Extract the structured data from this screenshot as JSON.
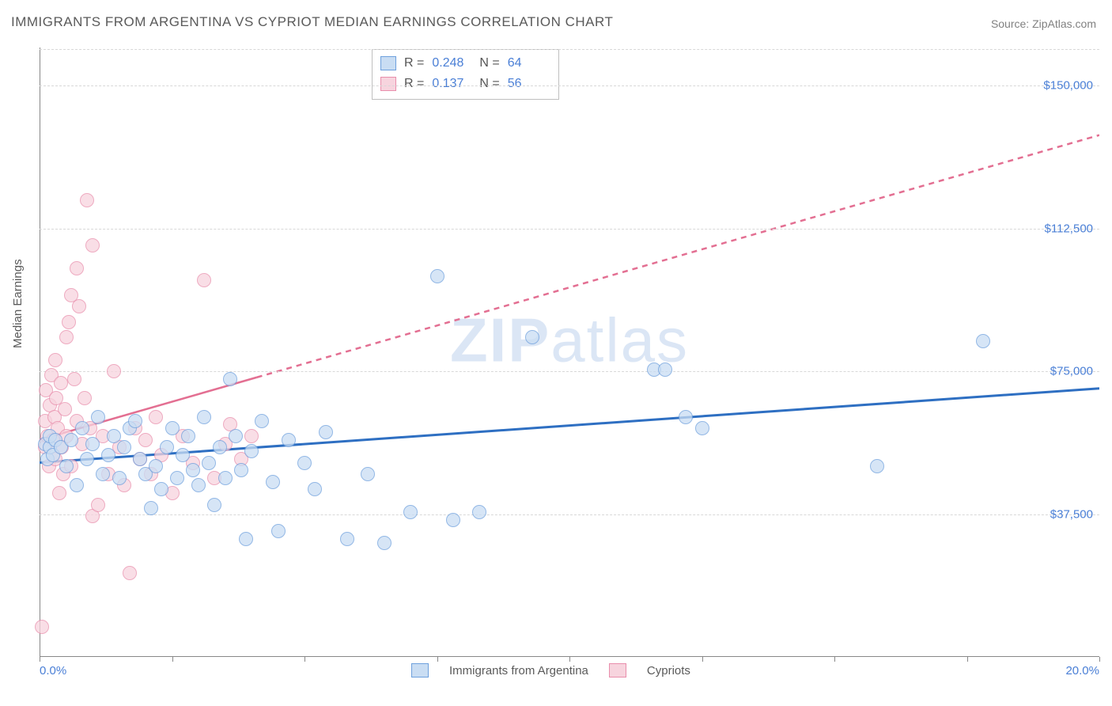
{
  "title": "IMMIGRANTS FROM ARGENTINA VS CYPRIOT MEDIAN EARNINGS CORRELATION CHART",
  "source": "Source: ZipAtlas.com",
  "ylabel": "Median Earnings",
  "watermark_a": "ZIP",
  "watermark_b": "atlas",
  "chart": {
    "type": "scatter",
    "xlim": [
      0,
      20
    ],
    "ylim": [
      0,
      160000
    ],
    "x_ticks": [
      0,
      2.5,
      5,
      7.5,
      10,
      12.5,
      15,
      17.5,
      20
    ],
    "x_tick_labels": {
      "0": "0.0%",
      "20": "20.0%"
    },
    "y_gridlines": [
      37500,
      75000,
      112500,
      150000
    ],
    "y_tick_labels": {
      "37500": "$37,500",
      "75000": "$75,000",
      "112500": "$112,500",
      "150000": "$150,000"
    },
    "background_color": "#ffffff",
    "grid_color": "#d8d8d8",
    "axis_color": "#888888",
    "tick_label_color": "#4a7fd6",
    "marker_radius": 9,
    "marker_border_width": 1.2,
    "series": [
      {
        "name": "Immigrants from Argentina",
        "fill": "#c9ddf3",
        "stroke": "#6ea0dd",
        "fill_opacity": 0.75,
        "R": "0.248",
        "N": "64",
        "trend": {
          "color": "#2e6fc2",
          "width": 3,
          "y_at_x0": 51000,
          "y_at_x20": 70500,
          "solid_until_x": 20
        },
        "points": [
          [
            0.1,
            56000
          ],
          [
            0.15,
            52000
          ],
          [
            0.2,
            55000
          ],
          [
            0.2,
            58000
          ],
          [
            0.25,
            53000
          ],
          [
            0.3,
            57000
          ],
          [
            0.4,
            55000
          ],
          [
            0.5,
            50000
          ],
          [
            0.6,
            57000
          ],
          [
            0.7,
            45000
          ],
          [
            0.8,
            60000
          ],
          [
            0.9,
            52000
          ],
          [
            1.0,
            56000
          ],
          [
            1.1,
            63000
          ],
          [
            1.2,
            48000
          ],
          [
            1.3,
            53000
          ],
          [
            1.4,
            58000
          ],
          [
            1.5,
            47000
          ],
          [
            1.6,
            55000
          ],
          [
            1.7,
            60000
          ],
          [
            1.8,
            62000
          ],
          [
            1.9,
            52000
          ],
          [
            2.0,
            48000
          ],
          [
            2.1,
            39000
          ],
          [
            2.2,
            50000
          ],
          [
            2.3,
            44000
          ],
          [
            2.4,
            55000
          ],
          [
            2.5,
            60000
          ],
          [
            2.6,
            47000
          ],
          [
            2.7,
            53000
          ],
          [
            2.8,
            58000
          ],
          [
            2.9,
            49000
          ],
          [
            3.0,
            45000
          ],
          [
            3.1,
            63000
          ],
          [
            3.2,
            51000
          ],
          [
            3.3,
            40000
          ],
          [
            3.4,
            55000
          ],
          [
            3.5,
            47000
          ],
          [
            3.6,
            73000
          ],
          [
            3.7,
            58000
          ],
          [
            3.8,
            49000
          ],
          [
            3.9,
            31000
          ],
          [
            4.0,
            54000
          ],
          [
            4.2,
            62000
          ],
          [
            4.4,
            46000
          ],
          [
            4.5,
            33000
          ],
          [
            4.7,
            57000
          ],
          [
            5.0,
            51000
          ],
          [
            5.2,
            44000
          ],
          [
            5.4,
            59000
          ],
          [
            5.8,
            31000
          ],
          [
            6.2,
            48000
          ],
          [
            6.5,
            30000
          ],
          [
            7.0,
            38000
          ],
          [
            7.5,
            100000
          ],
          [
            7.8,
            36000
          ],
          [
            8.3,
            38000
          ],
          [
            9.3,
            84000
          ],
          [
            11.6,
            75500
          ],
          [
            11.8,
            75500
          ],
          [
            12.2,
            63000
          ],
          [
            12.5,
            60000
          ],
          [
            15.8,
            50000
          ],
          [
            17.8,
            83000
          ]
        ]
      },
      {
        "name": "Cypriots",
        "fill": "#f7d4de",
        "stroke": "#e98eac",
        "fill_opacity": 0.75,
        "R": "0.137",
        "N": "56",
        "trend": {
          "color": "#e36f92",
          "width": 2.5,
          "y_at_x0": 57000,
          "y_at_x20": 137000,
          "solid_until_x": 4.1
        },
        "points": [
          [
            0.05,
            8000
          ],
          [
            0.1,
            55000
          ],
          [
            0.1,
            62000
          ],
          [
            0.12,
            70000
          ],
          [
            0.15,
            58000
          ],
          [
            0.18,
            50000
          ],
          [
            0.2,
            66000
          ],
          [
            0.22,
            74000
          ],
          [
            0.25,
            57000
          ],
          [
            0.28,
            63000
          ],
          [
            0.3,
            52000
          ],
          [
            0.32,
            68000
          ],
          [
            0.35,
            60000
          ],
          [
            0.38,
            43000
          ],
          [
            0.4,
            72000
          ],
          [
            0.42,
            55000
          ],
          [
            0.45,
            48000
          ],
          [
            0.48,
            65000
          ],
          [
            0.5,
            58000
          ],
          [
            0.55,
            88000
          ],
          [
            0.6,
            95000
          ],
          [
            0.6,
            50000
          ],
          [
            0.65,
            73000
          ],
          [
            0.7,
            62000
          ],
          [
            0.7,
            102000
          ],
          [
            0.75,
            92000
          ],
          [
            0.8,
            56000
          ],
          [
            0.85,
            68000
          ],
          [
            0.9,
            120000
          ],
          [
            0.95,
            60000
          ],
          [
            1.0,
            37000
          ],
          [
            1.1,
            40000
          ],
          [
            1.2,
            58000
          ],
          [
            1.3,
            48000
          ],
          [
            1.4,
            75000
          ],
          [
            1.5,
            55000
          ],
          [
            1.6,
            45000
          ],
          [
            1.7,
            22000
          ],
          [
            1.8,
            60000
          ],
          [
            1.9,
            52000
          ],
          [
            2.0,
            57000
          ],
          [
            2.1,
            48000
          ],
          [
            2.2,
            63000
          ],
          [
            2.3,
            53000
          ],
          [
            2.5,
            43000
          ],
          [
            2.7,
            58000
          ],
          [
            2.9,
            51000
          ],
          [
            3.1,
            99000
          ],
          [
            3.3,
            47000
          ],
          [
            3.5,
            56000
          ],
          [
            3.6,
            61000
          ],
          [
            3.8,
            52000
          ],
          [
            4.0,
            58000
          ],
          [
            1.0,
            108000
          ],
          [
            0.5,
            84000
          ],
          [
            0.3,
            78000
          ]
        ]
      }
    ]
  },
  "stats_labels": {
    "R": "R =",
    "N": "N ="
  },
  "legend_bottom": [
    {
      "label": "Immigrants from Argentina",
      "fill": "#c9ddf3",
      "stroke": "#6ea0dd"
    },
    {
      "label": "Cypriots",
      "fill": "#f7d4de",
      "stroke": "#e98eac"
    }
  ]
}
